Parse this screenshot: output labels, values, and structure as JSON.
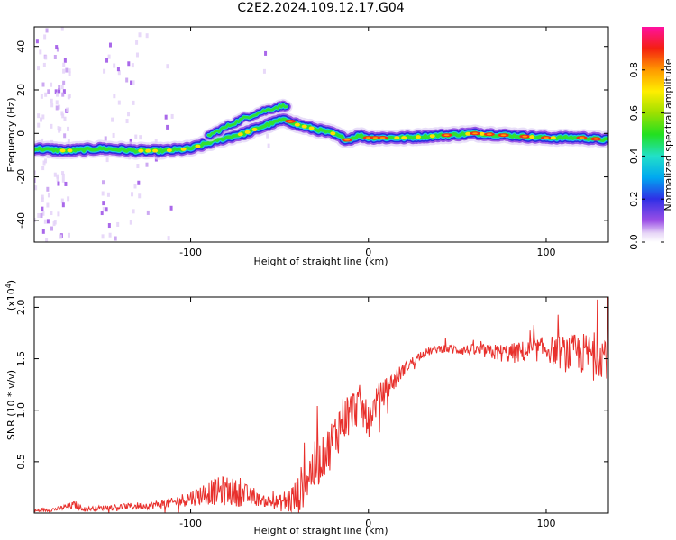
{
  "title": "C2E2.2024.109.12.17.G04",
  "chart_data": [
    {
      "type": "heatmap",
      "xlabel": "Height of straight line (km)",
      "ylabel": "Frequency (Hz)",
      "xlim": [
        -188,
        135
      ],
      "ylim": [
        -50,
        49
      ],
      "xticks": [
        -100,
        0,
        100
      ],
      "xtick_labels": [
        "-100",
        "0",
        "100"
      ],
      "yticks": [
        -40,
        -20,
        0,
        20,
        40
      ],
      "ytick_labels": [
        "-40",
        "-20",
        "0",
        "20",
        "40"
      ],
      "ridge": {
        "x": [
          -188,
          -170,
          -150,
          -130,
          -115,
          -100,
          -85,
          -70,
          -60,
          -50,
          -45,
          -40,
          -30,
          -20,
          -12,
          -5,
          0,
          20,
          40,
          60,
          80,
          100,
          120,
          135
        ],
        "y": [
          -7,
          -8,
          -7,
          -8,
          -8,
          -7,
          -3,
          0,
          3,
          6,
          6,
          4,
          2,
          0,
          -3,
          -1,
          -2,
          -2,
          -1,
          0,
          -1,
          -2,
          -2,
          -3
        ]
      },
      "upper_branch": {
        "x": [
          -90,
          -80,
          -70,
          -60,
          -52,
          -46
        ],
        "y": [
          -1,
          3,
          7,
          10,
          12,
          13
        ]
      },
      "colorbar": {
        "label": "Normalized spectral amplitude",
        "range": [
          0.0,
          1.0
        ],
        "ticks": [
          0.0,
          0.2,
          0.4,
          0.6,
          0.8
        ],
        "tick_labels": [
          "0.0",
          "0.2",
          "0.4",
          "0.6",
          "0.8"
        ]
      }
    },
    {
      "type": "line",
      "xlabel": "Height of straight line (km)",
      "ylabel": "SNR (10 * v/v)",
      "scale_label": "(x10",
      "scale_exponent": "4",
      "xlim": [
        -188,
        135
      ],
      "ylim": [
        0,
        2.1
      ],
      "xticks": [
        -100,
        0,
        100
      ],
      "xtick_labels": [
        "-100",
        "0",
        "100"
      ],
      "yticks": [
        0.5,
        1.0,
        1.5,
        2.0
      ],
      "ytick_labels": [
        "0.5",
        "1.0",
        "1.5",
        "2.0"
      ],
      "series": [
        {
          "color": "#e8302c",
          "x": [
            -188,
            -175,
            -165,
            -160,
            -140,
            -120,
            -110,
            -100,
            -90,
            -80,
            -70,
            -60,
            -50,
            -40,
            -35,
            -30,
            -25,
            -20,
            -15,
            -10,
            -5,
            0,
            5,
            10,
            15,
            20,
            30,
            40,
            60,
            80,
            100,
            110,
            120,
            130,
            135
          ],
          "y": [
            0.02,
            0.04,
            0.08,
            0.04,
            0.06,
            0.08,
            0.1,
            0.15,
            0.2,
            0.22,
            0.18,
            0.12,
            0.1,
            0.15,
            0.35,
            0.45,
            0.55,
            0.7,
            0.9,
            1.0,
            1.05,
            0.9,
            1.1,
            1.2,
            1.3,
            1.4,
            1.55,
            1.6,
            1.58,
            1.55,
            1.6,
            1.55,
            1.55,
            1.55,
            1.55
          ],
          "noise": [
            0.02,
            0.02,
            0.04,
            0.02,
            0.03,
            0.04,
            0.05,
            0.08,
            0.12,
            0.15,
            0.12,
            0.05,
            0.08,
            0.2,
            0.25,
            0.25,
            0.2,
            0.25,
            0.25,
            0.2,
            0.2,
            0.15,
            0.15,
            0.12,
            0.1,
            0.06,
            0.04,
            0.04,
            0.06,
            0.1,
            0.12,
            0.18,
            0.2,
            0.22,
            0.25
          ]
        }
      ]
    }
  ]
}
